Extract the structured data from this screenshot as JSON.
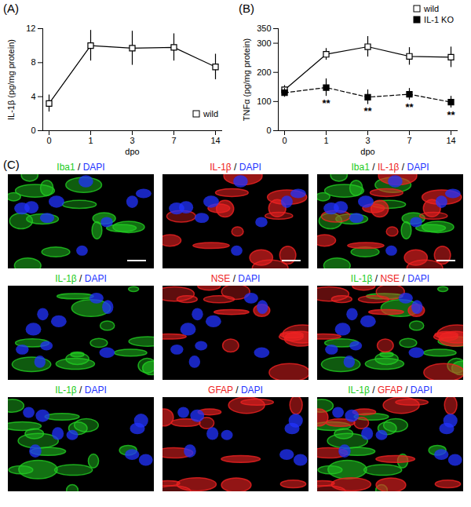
{
  "chart_data": [
    {
      "type": "line",
      "title": "(A)",
      "x_label": "dpo",
      "y_label": "IL-1β (pg/mg protein)",
      "categories": [
        "0",
        "1",
        "3",
        "7",
        "14"
      ],
      "ylim": [
        0,
        12
      ],
      "yticks": [
        0,
        4,
        8,
        12
      ],
      "legend": "bottom-right",
      "series": [
        {
          "name": "wild",
          "color": "#000000",
          "marker": "square-open",
          "line_style": "solid",
          "values": [
            3.2,
            10.0,
            9.7,
            9.8,
            7.5
          ],
          "errors": [
            1.0,
            1.8,
            2.0,
            1.6,
            1.5
          ]
        }
      ]
    },
    {
      "type": "line",
      "title": "(B)",
      "x_label": "dpo",
      "y_label": "TNFα (pg/mg protein)",
      "categories": [
        "0",
        "1",
        "3",
        "7",
        "14"
      ],
      "ylim": [
        0,
        350
      ],
      "yticks": [
        0,
        100,
        200,
        300,
        350
      ],
      "legend": "top-right",
      "series": [
        {
          "name": "wild",
          "color": "#000000",
          "marker": "square-open",
          "line_style": "solid",
          "values": [
            140,
            262,
            288,
            255,
            252
          ],
          "errors": [
            15,
            20,
            35,
            30,
            35
          ]
        },
        {
          "name": "IL-1 KO",
          "color": "#000000",
          "marker": "square",
          "line_style": "dashed",
          "values": [
            130,
            148,
            115,
            125,
            98
          ],
          "errors": [
            15,
            30,
            25,
            20,
            20
          ]
        }
      ],
      "annotations": [
        {
          "x": "1",
          "series": "IL-1 KO",
          "text": "**"
        },
        {
          "x": "3",
          "series": "IL-1 KO",
          "text": "**"
        },
        {
          "x": "7",
          "series": "IL-1 KO",
          "text": "**"
        },
        {
          "x": "14",
          "series": "IL-1 KO",
          "text": "**"
        }
      ]
    }
  ],
  "image_panel": {
    "title": "(C)",
    "rows": [
      [
        {
          "label": [
            {
              "text": "Iba1",
              "color": "#22cc22"
            },
            {
              "text": " / "
            },
            {
              "text": "DAPI",
              "color": "#2233ff"
            }
          ]
        },
        {
          "label": [
            {
              "text": "IL-1β",
              "color": "#ee2222"
            },
            {
              "text": " / "
            },
            {
              "text": "DAPI",
              "color": "#2233ff"
            }
          ]
        },
        {
          "label": [
            {
              "text": "Iba1",
              "color": "#22cc22"
            },
            {
              "text": " / "
            },
            {
              "text": "IL-1β",
              "color": "#ee2222"
            },
            {
              "text": " / "
            },
            {
              "text": "DAPI",
              "color": "#2233ff"
            }
          ]
        }
      ],
      [
        {
          "label": [
            {
              "text": "IL-1β",
              "color": "#22cc22"
            },
            {
              "text": " / "
            },
            {
              "text": "DAPI",
              "color": "#2233ff"
            }
          ]
        },
        {
          "label": [
            {
              "text": "NSE",
              "color": "#ee2222"
            },
            {
              "text": " / "
            },
            {
              "text": "DAPI",
              "color": "#2233ff"
            }
          ]
        },
        {
          "label": [
            {
              "text": "IL-1β",
              "color": "#22cc22"
            },
            {
              "text": " / "
            },
            {
              "text": "NSE",
              "color": "#ee2222"
            },
            {
              "text": " / "
            },
            {
              "text": "DAPI",
              "color": "#2233ff"
            }
          ]
        }
      ],
      [
        {
          "label": [
            {
              "text": "IL-1β",
              "color": "#22cc22"
            },
            {
              "text": " / "
            },
            {
              "text": "DAPI",
              "color": "#2233ff"
            }
          ]
        },
        {
          "label": [
            {
              "text": "GFAP",
              "color": "#ee2222"
            },
            {
              "text": " / "
            },
            {
              "text": "DAPI",
              "color": "#2233ff"
            }
          ]
        },
        {
          "label": [
            {
              "text": "IL-1β",
              "color": "#22cc22"
            },
            {
              "text": " / "
            },
            {
              "text": "GFAP",
              "color": "#ee2222"
            },
            {
              "text": " / "
            },
            {
              "text": "DAPI",
              "color": "#2233ff"
            }
          ]
        }
      ]
    ]
  }
}
